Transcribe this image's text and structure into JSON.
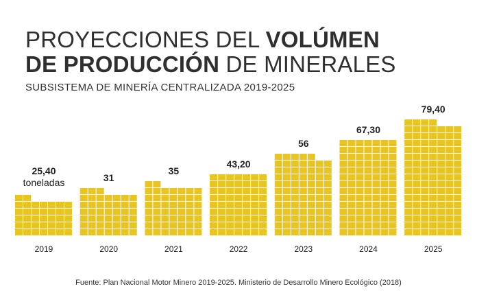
{
  "header": {
    "title_line1_light": "PROYECCIONES DEL ",
    "title_line1_bold": "VOLÚMEN",
    "title_line2_bold": "DE PRODUCCIÓN",
    "title_line2_light": " DE MINERALES",
    "subtitle": "SUBSISTEMA DE MINERÍA CENTRALIZADA 2019-2025"
  },
  "chart_data": {
    "type": "bar",
    "title": "PROYECCIONES DEL VOLÚMEN DE PRODUCCIÓN DE MINERALES",
    "subtitle": "SUBSISTEMA DE MINERÍA CENTRALIZADA 2019-2025",
    "categories": [
      "2019",
      "2020",
      "2021",
      "2022",
      "2023",
      "2024",
      "2025"
    ],
    "values": [
      25.4,
      31,
      35,
      43.2,
      56,
      67.3,
      79.4
    ],
    "value_labels": [
      "25,40",
      "31",
      "35",
      "43,20",
      "56",
      "67,30",
      "79,40"
    ],
    "unit_label": "toneladas",
    "xlabel": "",
    "ylabel": "",
    "grid": false,
    "bar_color": "#e8c520"
  },
  "footer": {
    "source": "Fuente: Plan Nacional Motor Minero 2019-2025. Ministerio de Desarrollo Minero Ecológico (2018)"
  }
}
